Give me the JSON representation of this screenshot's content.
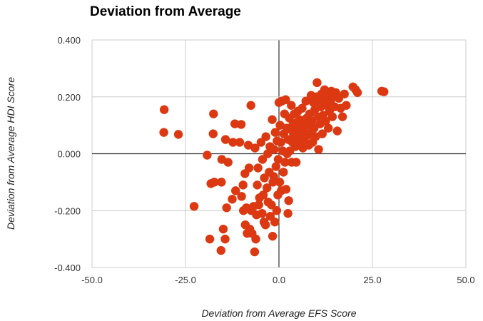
{
  "chart_data": {
    "type": "scatter",
    "title": "Deviation from Average",
    "xlabel": "Deviation from Average EFS Score",
    "ylabel": "Deviation from Average HDI Score",
    "xlim": [
      -50,
      50
    ],
    "ylim": [
      -0.4,
      0.4
    ],
    "xticks": [
      "-50.0",
      "-25.0",
      "0.0",
      "25.0",
      "50.0"
    ],
    "yticks": [
      "0.400",
      "0.200",
      "0.000",
      "-0.200",
      "-0.400"
    ],
    "xtick_values": [
      -50,
      -25,
      0,
      25,
      50
    ],
    "ytick_values": [
      0.4,
      0.2,
      0,
      -0.2,
      -0.4
    ],
    "grid": true,
    "legend": "none",
    "marker_color": "#DC3912",
    "points": [
      [
        -30.7,
        0.155
      ],
      [
        -30.8,
        0.075
      ],
      [
        -26.9,
        0.068
      ],
      [
        -22.7,
        -0.185
      ],
      [
        -19.2,
        -0.005
      ],
      [
        -18.2,
        -0.105
      ],
      [
        -17.5,
        0.14
      ],
      [
        -17.6,
        0.07
      ],
      [
        -17.3,
        -0.1
      ],
      [
        -18.5,
        -0.3
      ],
      [
        -15.4,
        -0.1
      ],
      [
        -15.5,
        -0.34
      ],
      [
        -15.3,
        -0.02
      ],
      [
        -14.4,
        -0.3
      ],
      [
        -14.9,
        -0.265
      ],
      [
        -14.3,
        0.05
      ],
      [
        -14.0,
        -0.19
      ],
      [
        -13.6,
        -0.03
      ],
      [
        -12.3,
        0.04
      ],
      [
        -11.8,
        0.105
      ],
      [
        -11.6,
        -0.13
      ],
      [
        -12.5,
        -0.16
      ],
      [
        -10.1,
        0.103
      ],
      [
        -10.5,
        0.04
      ],
      [
        -10.0,
        -0.15
      ],
      [
        -9.5,
        -0.2
      ],
      [
        -9.6,
        -0.11
      ],
      [
        -9.1,
        -0.07
      ],
      [
        -9.0,
        -0.25
      ],
      [
        -8.7,
        -0.19
      ],
      [
        -8.5,
        -0.28
      ],
      [
        -8.2,
        0.03
      ],
      [
        -8.0,
        -0.05
      ],
      [
        -7.8,
        -0.265
      ],
      [
        -7.5,
        0.17
      ],
      [
        -7.4,
        -0.2
      ],
      [
        -7.2,
        -0.28
      ],
      [
        -6.8,
        -0.185
      ],
      [
        -6.5,
        -0.345
      ],
      [
        -6.4,
        0.02
      ],
      [
        -6.2,
        -0.3
      ],
      [
        -6.0,
        -0.215
      ],
      [
        -5.8,
        -0.11
      ],
      [
        -5.6,
        -0.05
      ],
      [
        -5.4,
        -0.18
      ],
      [
        -5.2,
        -0.155
      ],
      [
        -4.8,
        0.04
      ],
      [
        -4.5,
        -0.21
      ],
      [
        -4.4,
        -0.02
      ],
      [
        -4.2,
        -0.145
      ],
      [
        -4.0,
        -0.24
      ],
      [
        -3.9,
        -0.085
      ],
      [
        -3.6,
        -0.25
      ],
      [
        -3.5,
        0.06
      ],
      [
        -3.2,
        -0.12
      ],
      [
        -3.0,
        0.0
      ],
      [
        -2.9,
        -0.17
      ],
      [
        -2.6,
        -0.065
      ],
      [
        -2.4,
        0.025
      ],
      [
        -2.3,
        -0.22
      ],
      [
        -2.0,
        -0.18
      ],
      [
        -1.8,
        0.12
      ],
      [
        -1.7,
        -0.29
      ],
      [
        -1.6,
        -0.1
      ],
      [
        -1.4,
        -0.08
      ],
      [
        -1.3,
        0.015
      ],
      [
        -1.1,
        -0.24
      ],
      [
        -1.0,
        0.075
      ],
      [
        -0.8,
        -0.045
      ],
      [
        -0.6,
        -0.2
      ],
      [
        -0.5,
        0.045
      ],
      [
        -0.3,
        -0.145
      ],
      [
        -0.2,
        -0.02
      ],
      [
        0.0,
        0.18
      ],
      [
        0.2,
        -0.1
      ],
      [
        0.3,
        0.1
      ],
      [
        0.5,
        0.04
      ],
      [
        0.6,
        -0.13
      ],
      [
        0.8,
        0.185
      ],
      [
        1.0,
        0.01
      ],
      [
        1.2,
        -0.065
      ],
      [
        1.3,
        0.07
      ],
      [
        1.5,
        0.14
      ],
      [
        1.6,
        -0.03
      ],
      [
        1.8,
        0.19
      ],
      [
        1.9,
        -0.125
      ],
      [
        2.1,
        0.09
      ],
      [
        2.2,
        0.0
      ],
      [
        2.4,
        -0.21
      ],
      [
        2.5,
        0.05
      ],
      [
        2.6,
        -0.165
      ],
      [
        2.8,
        0.125
      ],
      [
        2.9,
        0.01
      ],
      [
        3.1,
        0.085
      ],
      [
        3.3,
        0.17
      ],
      [
        3.4,
        -0.03
      ],
      [
        3.6,
        0.04
      ],
      [
        3.7,
        0.1
      ],
      [
        3.9,
        0.065
      ],
      [
        4.1,
        0.14
      ],
      [
        4.2,
        0.085
      ],
      [
        4.4,
        0.025
      ],
      [
        4.6,
        -0.03
      ],
      [
        4.8,
        0.11
      ],
      [
        5.0,
        0.045
      ],
      [
        5.1,
        0.15
      ],
      [
        5.3,
        0.075
      ],
      [
        5.5,
        0.12
      ],
      [
        5.7,
        0.03
      ],
      [
        5.9,
        0.095
      ],
      [
        6.0,
        0.06
      ],
      [
        6.2,
        0.16
      ],
      [
        6.4,
        0.02
      ],
      [
        6.6,
        0.1
      ],
      [
        6.8,
        0.08
      ],
      [
        7.0,
        0.04
      ],
      [
        7.2,
        0.185
      ],
      [
        7.4,
        0.125
      ],
      [
        7.6,
        0.065
      ],
      [
        7.8,
        0.1
      ],
      [
        8.0,
        0.03
      ],
      [
        8.2,
        0.14
      ],
      [
        8.4,
        0.07
      ],
      [
        8.6,
        0.205
      ],
      [
        8.8,
        0.115
      ],
      [
        9.0,
        0.04
      ],
      [
        9.2,
        0.18
      ],
      [
        9.4,
        0.09
      ],
      [
        9.6,
        0.155
      ],
      [
        9.8,
        0.06
      ],
      [
        10.0,
        0.2
      ],
      [
        10.2,
        0.25
      ],
      [
        10.4,
        0.13
      ],
      [
        10.6,
        0.015
      ],
      [
        10.8,
        0.185
      ],
      [
        11.0,
        0.105
      ],
      [
        11.2,
        0.165
      ],
      [
        11.4,
        0.21
      ],
      [
        11.6,
        0.07
      ],
      [
        11.8,
        0.135
      ],
      [
        12.0,
        0.195
      ],
      [
        12.2,
        0.225
      ],
      [
        12.5,
        0.115
      ],
      [
        12.8,
        0.17
      ],
      [
        13.0,
        0.205
      ],
      [
        13.2,
        0.09
      ],
      [
        13.5,
        0.15
      ],
      [
        13.8,
        0.185
      ],
      [
        14.0,
        0.22
      ],
      [
        14.3,
        0.13
      ],
      [
        14.6,
        0.2
      ],
      [
        14.9,
        0.165
      ],
      [
        15.2,
        0.215
      ],
      [
        15.6,
        0.08
      ],
      [
        16.0,
        0.195
      ],
      [
        16.5,
        0.16
      ],
      [
        17.0,
        0.13
      ],
      [
        17.5,
        0.21
      ],
      [
        18.0,
        0.17
      ],
      [
        19.8,
        0.235
      ],
      [
        20.5,
        0.225
      ],
      [
        21.0,
        0.215
      ],
      [
        27.5,
        0.22
      ],
      [
        28.1,
        0.218
      ]
    ]
  }
}
